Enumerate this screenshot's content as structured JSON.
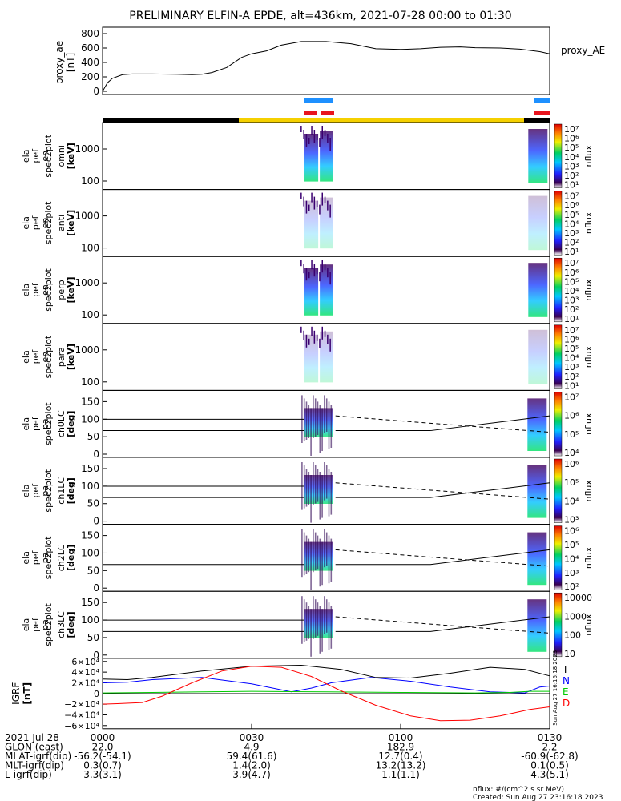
{
  "title": "PRELIMINARY ELFIN-A EPDE, alt=436km, 2021-07-28 00:00 to 01:30",
  "ae_panel": {
    "ylabel": "proxy_ae",
    "yunit": "[nT]",
    "legend": "proxy_AE",
    "ylim": [
      0,
      800
    ],
    "ticks": [
      "800",
      "600",
      "400",
      "200",
      "0"
    ]
  },
  "spec_panels": [
    {
      "labels": [
        "ela",
        "pef",
        "en",
        "spec2plot",
        "omni"
      ],
      "unit": "[keV]",
      "ticks": [
        "1000",
        "100"
      ],
      "cbar_ticks": [
        "10⁷",
        "10⁶",
        "10⁵",
        "10⁴",
        "10³",
        "10²",
        "10¹"
      ],
      "cbar_label": "nflux"
    },
    {
      "labels": [
        "ela",
        "pef",
        "en",
        "spec2plot",
        "anti"
      ],
      "unit": "[keV]",
      "ticks": [
        "1000",
        "100"
      ],
      "cbar_ticks": [
        "10⁷",
        "10⁶",
        "10⁵",
        "10⁴",
        "10³",
        "10²",
        "10¹"
      ],
      "cbar_label": "nflux"
    },
    {
      "labels": [
        "ela",
        "pef",
        "en",
        "spec2plot",
        "perp"
      ],
      "unit": "[keV]",
      "ticks": [
        "1000",
        "100"
      ],
      "cbar_ticks": [
        "10⁷",
        "10⁶",
        "10⁵",
        "10⁴",
        "10³",
        "10²",
        "10¹"
      ],
      "cbar_label": "nflux"
    },
    {
      "labels": [
        "ela",
        "pef",
        "en",
        "spec2plot",
        "para"
      ],
      "unit": "[keV]",
      "ticks": [
        "1000",
        "100"
      ],
      "cbar_ticks": [
        "10⁷",
        "10⁶",
        "10⁵",
        "10⁴",
        "10³",
        "10²",
        "10¹"
      ],
      "cbar_label": "nflux"
    },
    {
      "labels": [
        "ela",
        "pef",
        "pa",
        "spec2plot",
        "ch0LC"
      ],
      "unit": "[deg]",
      "ticks": [
        "150",
        "100",
        "50",
        "0"
      ],
      "cbar_ticks": [
        "10⁷",
        "10⁶",
        "10⁵",
        "10⁴"
      ],
      "cbar_label": "nflux"
    },
    {
      "labels": [
        "ela",
        "pef",
        "pa",
        "spec2plot",
        "ch1LC"
      ],
      "unit": "[deg]",
      "ticks": [
        "150",
        "100",
        "50",
        "0"
      ],
      "cbar_ticks": [
        "10⁶",
        "10⁵",
        "10⁴",
        "10³"
      ],
      "cbar_label": "nflux"
    },
    {
      "labels": [
        "ela",
        "pef",
        "pa",
        "spec2plot",
        "ch2LC"
      ],
      "unit": "[deg]",
      "ticks": [
        "150",
        "100",
        "50",
        "0"
      ],
      "cbar_ticks": [
        "10⁶",
        "10⁵",
        "10⁴",
        "10³",
        "10²"
      ],
      "cbar_label": "nflux"
    },
    {
      "labels": [
        "ela",
        "pef",
        "pa",
        "spec2plot",
        "ch3LC"
      ],
      "unit": "[deg]",
      "ticks": [
        "150",
        "100",
        "50",
        "0"
      ],
      "cbar_ticks": [
        "10000",
        "1000",
        "100",
        "10"
      ],
      "cbar_label": "nflux"
    }
  ],
  "igrf_panel": {
    "ylabel": "IGRF",
    "yunit": "[nT]",
    "ticks": [
      "6×10⁴",
      "4×10⁴",
      "2×10⁴",
      "0",
      "−2×10⁴",
      "−4×10⁴",
      "−6×10⁴"
    ],
    "legend": [
      {
        "name": "T",
        "color": "#000000"
      },
      {
        "name": "N",
        "color": "#0000ff"
      },
      {
        "name": "E",
        "color": "#00cc00"
      },
      {
        "name": "D",
        "color": "#ff0000"
      }
    ],
    "side_text": "Sun Aug 27 16:16:18 2023"
  },
  "footer": {
    "row_labels": [
      "2021 Jul 28",
      "GLON (east)",
      "MLAT-igrf(dip)",
      "MLT-igrf(dip)",
      "L-igrf(dip)"
    ],
    "columns": [
      [
        "0000",
        "22.0",
        "-56.2(-54.1)",
        "0.3(0.7)",
        "3.3(3.1)"
      ],
      [
        "0030",
        "4.9",
        "59.4(61.6)",
        "1.4(2.0)",
        "3.9(4.7)"
      ],
      [
        "0100",
        "182.9",
        "12.7(0.4)",
        "13.2(13.2)",
        "1.1(1.1)"
      ],
      [
        "0130",
        "2.2",
        "-60.9(-62.8)",
        "0.1(0.5)",
        "4.3(5.1)"
      ]
    ],
    "note1": "nflux: #/(cm^2 s sr MeV)",
    "note2": "Created: Sun Aug 27 23:16:18 2023"
  },
  "colors": {
    "sci_zone_blue": "#1e90ff",
    "sci_zone_red": "#e8141e",
    "orbit_yellow": "#f5d000",
    "orbit_black": "#000000"
  },
  "chart_data": {
    "type": "line",
    "x_range_minutes": [
      0,
      90
    ],
    "x_ticks": [
      "0000",
      "0030",
      "0100",
      "0130"
    ],
    "series": [
      {
        "name": "proxy_AE",
        "x": [
          0,
          1,
          2,
          4,
          6,
          10,
          15,
          18,
          20,
          22,
          25,
          28,
          30,
          33,
          36,
          40,
          45,
          50,
          55,
          60,
          64,
          68,
          72,
          75,
          80,
          84,
          88,
          90
        ],
        "y": [
          0,
          120,
          180,
          230,
          240,
          240,
          235,
          230,
          235,
          260,
          330,
          470,
          520,
          560,
          640,
          690,
          690,
          660,
          590,
          580,
          590,
          610,
          615,
          605,
          600,
          585,
          550,
          520
        ]
      },
      {
        "name": "T",
        "x": [
          0,
          5,
          10,
          20,
          30,
          40,
          48,
          55,
          62,
          70,
          78,
          85,
          90
        ],
        "y": [
          27000,
          26000,
          30000,
          42000,
          51000,
          53000,
          45000,
          30000,
          29000,
          38000,
          49000,
          45000,
          33000
        ]
      },
      {
        "name": "N",
        "x": [
          0,
          5,
          10,
          20,
          30,
          38,
          42,
          46,
          54,
          62,
          70,
          78,
          85,
          88,
          90
        ],
        "y": [
          20000,
          21000,
          26000,
          30000,
          18000,
          3000,
          10000,
          20000,
          30000,
          23000,
          12000,
          3000,
          1000,
          12000,
          14000
        ]
      },
      {
        "name": "E",
        "x": [
          0,
          10,
          20,
          30,
          45,
          60,
          75,
          82,
          86,
          90
        ],
        "y": [
          1000,
          2000,
          3000,
          4000,
          3000,
          2000,
          1000,
          2000,
          4000,
          4000
        ]
      },
      {
        "name": "D",
        "x": [
          0,
          3,
          8,
          12,
          18,
          24,
          30,
          36,
          42,
          48,
          55,
          62,
          68,
          74,
          80,
          86,
          90
        ],
        "y": [
          -20000,
          -19000,
          -17000,
          -5000,
          20000,
          42000,
          51000,
          49000,
          32000,
          5000,
          -22000,
          -42000,
          -51000,
          -50000,
          -42000,
          -30000,
          -25000
        ]
      }
    ]
  }
}
